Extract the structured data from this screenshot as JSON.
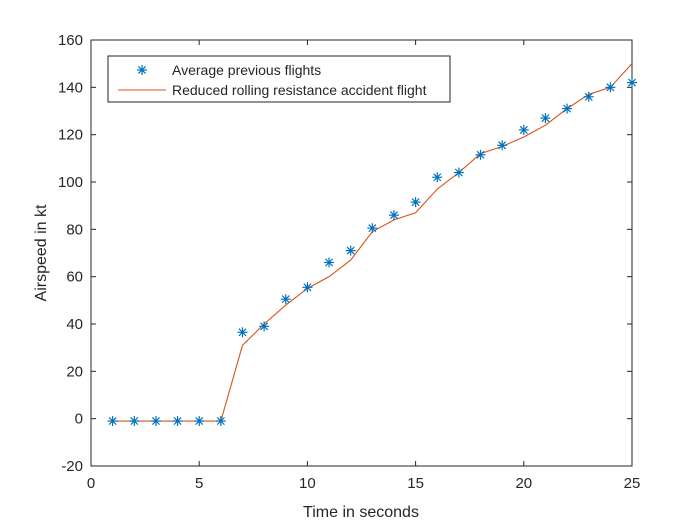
{
  "chart_data": {
    "type": "line",
    "xlabel": "Time in seconds",
    "ylabel": "Airspeed in kt",
    "xlim": [
      0,
      25
    ],
    "ylim": [
      -20,
      160
    ],
    "xticks": [
      0,
      5,
      10,
      15,
      20,
      25
    ],
    "yticks": [
      -20,
      0,
      20,
      40,
      60,
      80,
      100,
      120,
      140,
      160
    ],
    "grid": false,
    "legend_position": "top-left",
    "series": [
      {
        "name": "Average previous flights",
        "style": "markers",
        "marker": "asterisk",
        "color": "#0072BD",
        "x": [
          1,
          2,
          3,
          4,
          5,
          6,
          7,
          8,
          9,
          10,
          11,
          12,
          13,
          14,
          15,
          16,
          17,
          18,
          19,
          20,
          21,
          22,
          23,
          24,
          25
        ],
        "y": [
          -1,
          -1,
          -1,
          -1,
          -1,
          -1,
          36.5,
          39,
          50.5,
          55.5,
          66,
          71,
          80.5,
          86,
          91.5,
          102,
          104,
          111.5,
          115.5,
          122,
          127,
          131,
          136,
          140,
          142
        ]
      },
      {
        "name": "Reduced rolling resistance accident flight",
        "style": "line",
        "color": "#D95319",
        "x": [
          1,
          2,
          3,
          4,
          5,
          6,
          7,
          8,
          9,
          10,
          11,
          12,
          13,
          14,
          15,
          16,
          17,
          18,
          19,
          20,
          21,
          22,
          23,
          24,
          25
        ],
        "y": [
          -1,
          -1,
          -1,
          -1,
          -1,
          -1,
          31,
          40,
          48,
          55,
          60,
          67,
          79,
          84,
          87,
          97,
          104,
          112,
          115,
          119,
          124,
          131,
          137,
          140,
          150
        ]
      }
    ]
  }
}
